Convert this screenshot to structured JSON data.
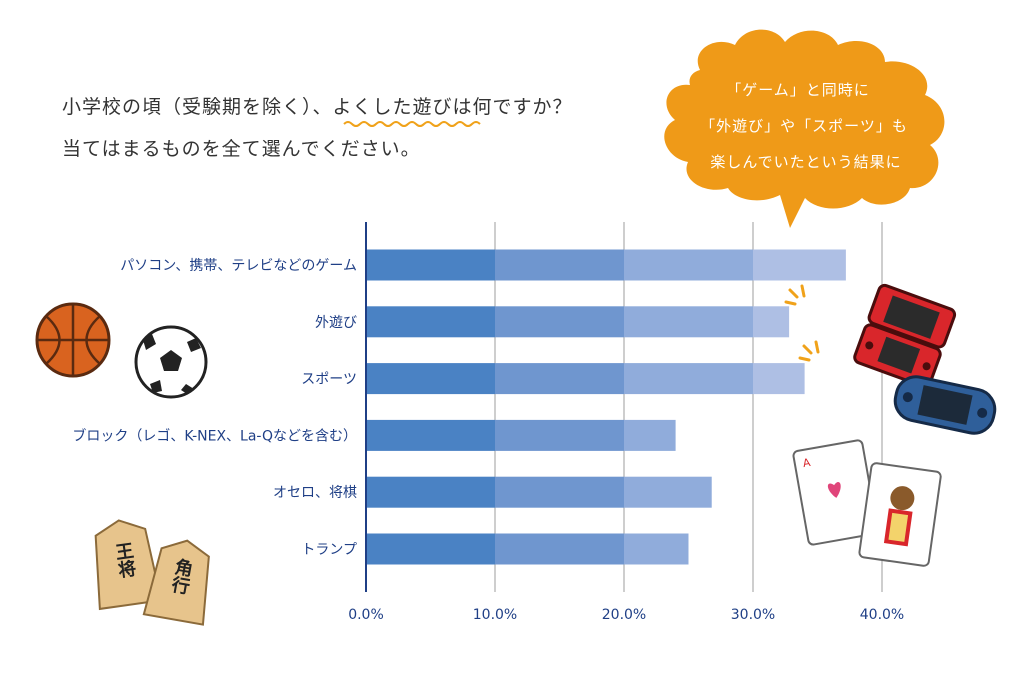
{
  "question": {
    "line1": "小学校の頃（受験期を除く）、よくした遊びは何ですか？",
    "line2": "当てはまるものを全て選んでください。",
    "highlight": "遊び"
  },
  "callout": {
    "lines": [
      "「ゲーム」と同時に",
      "「外遊び」や「スポーツ」も",
      "楽しんでいたという結果に"
    ],
    "color": "#ef9a18"
  },
  "chart_data": {
    "type": "bar",
    "orientation": "horizontal",
    "categories": [
      "パソコン、携帯、テレビなどのゲーム",
      "外遊び",
      "スポーツ",
      "ブロック（レゴ、K-NEX、La-Qなどを含む）",
      "オセロ、将棋",
      "トランプ"
    ],
    "values": [
      37.2,
      32.8,
      34.0,
      24.0,
      26.8,
      25.0
    ],
    "xlim": [
      0,
      40
    ],
    "ticks": [
      "0.0%",
      "10.0%",
      "20.0%",
      "30.0%",
      "40.0%"
    ],
    "grid": true,
    "bar_colors": [
      "#4a82c4",
      "#6f96cf",
      "#90acdb",
      "#aebfe4"
    ]
  },
  "illustrations": {
    "basketball": "basketball-icon",
    "soccer_ball": "soccer-ball-icon",
    "game_console_red": "handheld-console-icon",
    "game_console_blue": "portable-console-icon",
    "cards": "playing-cards-icon",
    "shogi": "shogi-pieces-icon",
    "shogi_text": [
      "王将",
      "角行"
    ]
  }
}
